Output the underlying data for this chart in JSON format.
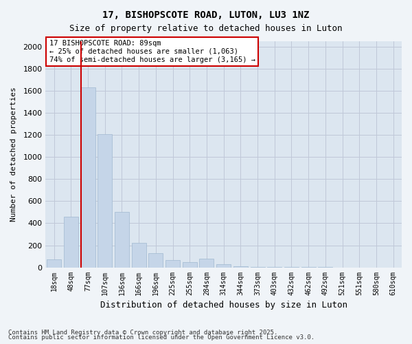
{
  "title_line1": "17, BISHOPSCOTE ROAD, LUTON, LU3 1NZ",
  "title_line2": "Size of property relative to detached houses in Luton",
  "xlabel": "Distribution of detached houses by size in Luton",
  "ylabel": "Number of detached properties",
  "categories": [
    "18sqm",
    "48sqm",
    "77sqm",
    "107sqm",
    "136sqm",
    "166sqm",
    "196sqm",
    "225sqm",
    "255sqm",
    "284sqm",
    "314sqm",
    "344sqm",
    "373sqm",
    "403sqm",
    "432sqm",
    "462sqm",
    "492sqm",
    "521sqm",
    "551sqm",
    "580sqm",
    "610sqm"
  ],
  "values": [
    70,
    460,
    1630,
    1210,
    500,
    220,
    130,
    65,
    50,
    80,
    30,
    10,
    5,
    3,
    2,
    1,
    1,
    0,
    0,
    0,
    0
  ],
  "bar_color": "#c5d5e8",
  "bar_edge_color": "#a0b8d0",
  "grid_color": "#c0c8d8",
  "background_color": "#dce6f0",
  "vline_x": 2,
  "vline_color": "#cc0000",
  "annotation_text": "17 BISHOPSCOTE ROAD: 89sqm\n← 25% of detached houses are smaller (1,063)\n74% of semi-detached houses are larger (3,165) →",
  "annotation_box_color": "#ffffff",
  "annotation_border_color": "#cc0000",
  "footer_line1": "Contains HM Land Registry data © Crown copyright and database right 2025.",
  "footer_line2": "Contains public sector information licensed under the Open Government Licence v3.0.",
  "ylim": [
    0,
    2050
  ],
  "yticks": [
    0,
    200,
    400,
    600,
    800,
    1000,
    1200,
    1400,
    1600,
    1800,
    2000
  ]
}
